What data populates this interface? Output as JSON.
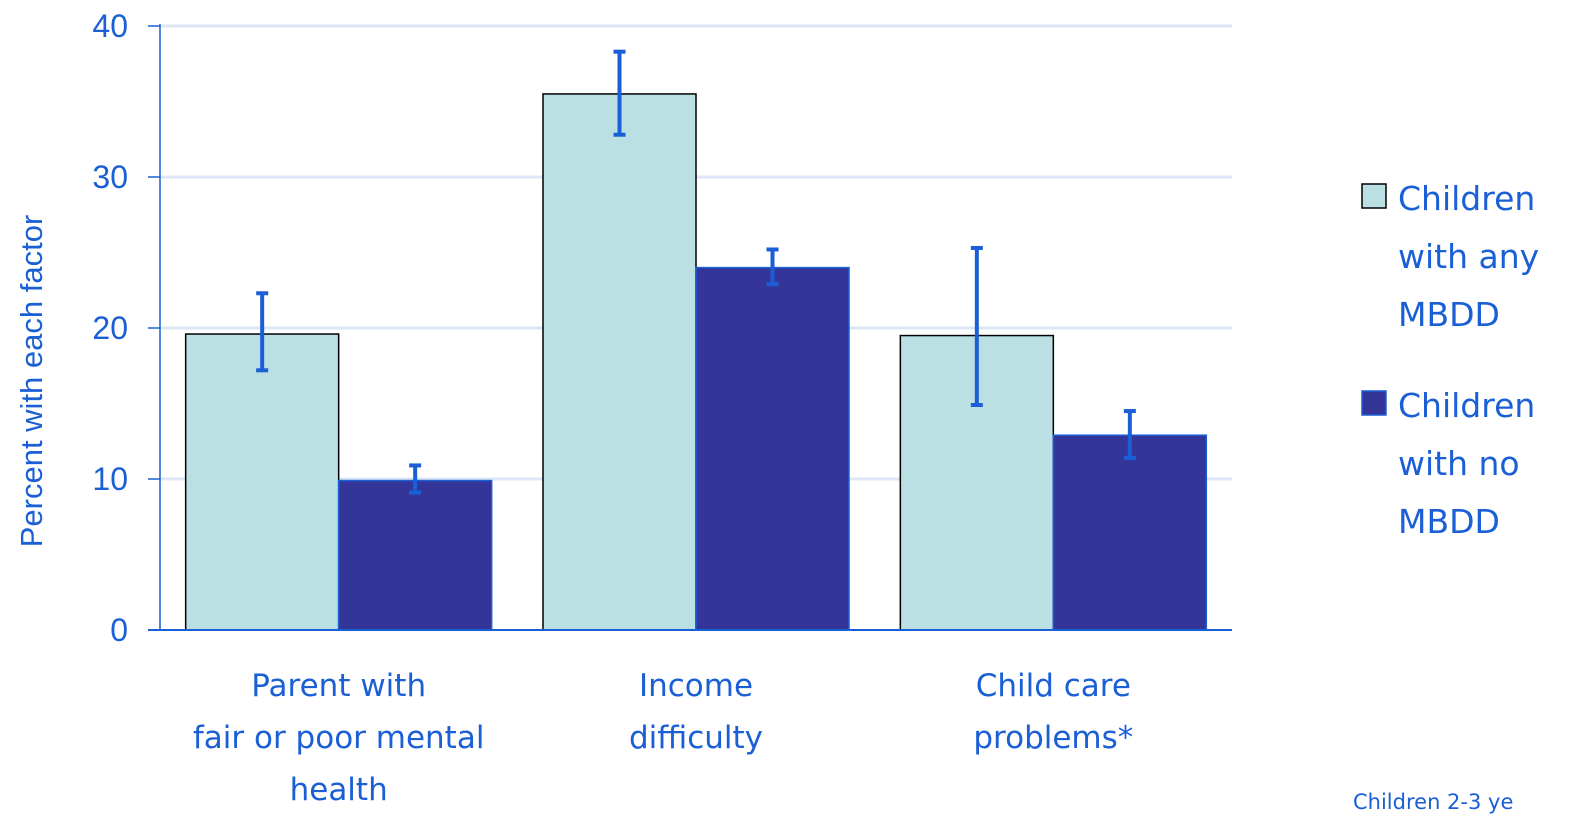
{
  "chart_data": {
    "type": "bar",
    "title": "",
    "xlabel": "",
    "ylabel": "Percent with each factor",
    "ylim": [
      0,
      40
    ],
    "yticks": [
      0,
      10,
      20,
      30,
      40
    ],
    "grid": true,
    "legend_position": "right",
    "categories": [
      [
        "Parent with",
        "fair or poor mental",
        "health"
      ],
      [
        "Income",
        "difficulty"
      ],
      [
        "Child care",
        "problems*"
      ]
    ],
    "series": [
      {
        "name_lines": [
          "Children",
          "with any",
          "MBDD"
        ],
        "color": "#bae0e3",
        "stroke": "#000000",
        "values": [
          19.6,
          35.5,
          19.5
        ],
        "error_low": [
          17.2,
          32.8,
          14.9
        ],
        "error_high": [
          22.3,
          38.3,
          25.3
        ]
      },
      {
        "name_lines": [
          "Children",
          "with no",
          "MBDD"
        ],
        "color": "#343599",
        "stroke": "#1a5fd6",
        "values": [
          9.9,
          24.0,
          12.9
        ],
        "error_low": [
          9.1,
          22.9,
          11.4
        ],
        "error_high": [
          10.9,
          25.2,
          14.5
        ]
      }
    ],
    "footnote": "Children 2-3 ye",
    "colors": {
      "text": "#1a5fd6",
      "grid": "#dce6f5",
      "axis": "#1a5fd6",
      "error_bar": "#1a5fd6"
    }
  }
}
